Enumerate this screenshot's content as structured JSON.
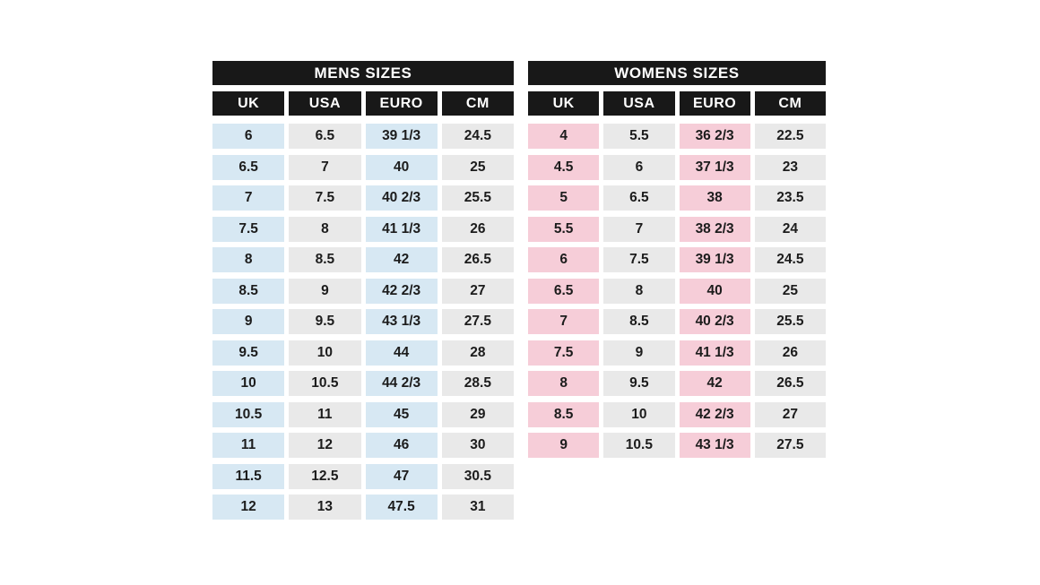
{
  "colors": {
    "header_bg": "#181818",
    "header_text": "#ffffff",
    "mens_accent": "#d7e8f3",
    "womens_accent": "#f6cdd8",
    "neutral_cell": "#e9e9e9",
    "cell_text": "#1c1c1c",
    "page_background": "#ffffff"
  },
  "chart_data": [
    {
      "type": "table",
      "title": "MENS SIZES",
      "columns": [
        "UK",
        "USA",
        "EURO",
        "CM"
      ],
      "accent_columns": [
        0,
        2
      ],
      "accent_color": "#d7e8f3",
      "rows": [
        [
          "6",
          "6.5",
          "39 1/3",
          "24.5"
        ],
        [
          "6.5",
          "7",
          "40",
          "25"
        ],
        [
          "7",
          "7.5",
          "40 2/3",
          "25.5"
        ],
        [
          "7.5",
          "8",
          "41 1/3",
          "26"
        ],
        [
          "8",
          "8.5",
          "42",
          "26.5"
        ],
        [
          "8.5",
          "9",
          "42 2/3",
          "27"
        ],
        [
          "9",
          "9.5",
          "43 1/3",
          "27.5"
        ],
        [
          "9.5",
          "10",
          "44",
          "28"
        ],
        [
          "10",
          "10.5",
          "44 2/3",
          "28.5"
        ],
        [
          "10.5",
          "11",
          "45",
          "29"
        ],
        [
          "11",
          "12",
          "46",
          "30"
        ],
        [
          "11.5",
          "12.5",
          "47",
          "30.5"
        ],
        [
          "12",
          "13",
          "47.5",
          "31"
        ]
      ]
    },
    {
      "type": "table",
      "title": "WOMENS SIZES",
      "columns": [
        "UK",
        "USA",
        "EURO",
        "CM"
      ],
      "accent_columns": [
        0,
        2
      ],
      "accent_color": "#f6cdd8",
      "rows": [
        [
          "4",
          "5.5",
          "36 2/3",
          "22.5"
        ],
        [
          "4.5",
          "6",
          "37 1/3",
          "23"
        ],
        [
          "5",
          "6.5",
          "38",
          "23.5"
        ],
        [
          "5.5",
          "7",
          "38 2/3",
          "24"
        ],
        [
          "6",
          "7.5",
          "39 1/3",
          "24.5"
        ],
        [
          "6.5",
          "8",
          "40",
          "25"
        ],
        [
          "7",
          "8.5",
          "40 2/3",
          "25.5"
        ],
        [
          "7.5",
          "9",
          "41 1/3",
          "26"
        ],
        [
          "8",
          "9.5",
          "42",
          "26.5"
        ],
        [
          "8.5",
          "10",
          "42 2/3",
          "27"
        ],
        [
          "9",
          "10.5",
          "43 1/3",
          "27.5"
        ]
      ]
    }
  ]
}
